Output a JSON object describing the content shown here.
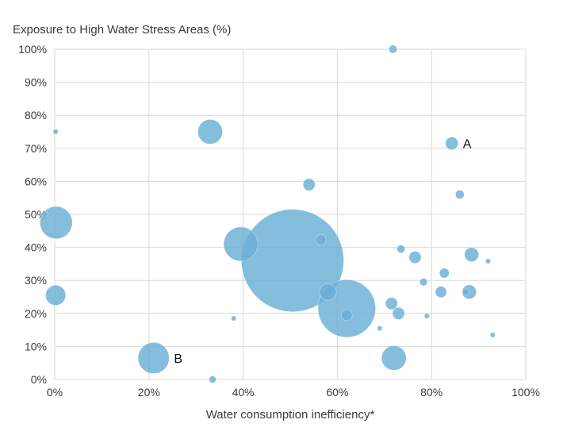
{
  "chart_data": {
    "type": "scatter",
    "title": "",
    "ylabel": "Exposure to High Water Stress Areas (%)",
    "xlabel": "Water consumption inefficiency*",
    "xlim": [
      0,
      100
    ],
    "ylim": [
      0,
      100
    ],
    "x_ticks": [
      "0%",
      "20%",
      "40%",
      "60%",
      "80%",
      "100%"
    ],
    "y_ticks": [
      "0%",
      "10%",
      "20%",
      "30%",
      "40%",
      "50%",
      "60%",
      "70%",
      "80%",
      "90%",
      "100%"
    ],
    "grid": true,
    "legend": false,
    "bubble_color": "#6aaed6",
    "points": [
      {
        "x": 71.8,
        "y": 100,
        "size": 1.6
      },
      {
        "x": 0.2,
        "y": 75,
        "size": 0.4
      },
      {
        "x": 33,
        "y": 75,
        "size": 15
      },
      {
        "x": 84.3,
        "y": 71.5,
        "size": 4
      },
      {
        "x": 54,
        "y": 59,
        "size": 3.6
      },
      {
        "x": 86,
        "y": 56,
        "size": 1.9
      },
      {
        "x": -2,
        "y": 50,
        "size": 0.5
      },
      {
        "x": 0.3,
        "y": 47.5,
        "size": 26
      },
      {
        "x": 56.5,
        "y": 42.3,
        "size": 2.7
      },
      {
        "x": 39.5,
        "y": 41,
        "size": 29
      },
      {
        "x": 50.5,
        "y": 36,
        "size": 260
      },
      {
        "x": 73.5,
        "y": 39.5,
        "size": 1.6
      },
      {
        "x": 76.5,
        "y": 37,
        "size": 3.6
      },
      {
        "x": 88.5,
        "y": 37.8,
        "size": 5
      },
      {
        "x": 92,
        "y": 35.8,
        "size": 0.4
      },
      {
        "x": 82.7,
        "y": 32.2,
        "size": 2.3
      },
      {
        "x": 78.3,
        "y": 29.5,
        "size": 1.4
      },
      {
        "x": 58,
        "y": 26.5,
        "size": 7
      },
      {
        "x": 0.2,
        "y": 25.5,
        "size": 10
      },
      {
        "x": 87.3,
        "y": 26.5,
        "size": 1
      },
      {
        "x": 82,
        "y": 26.5,
        "size": 3.1
      },
      {
        "x": 88,
        "y": 26.5,
        "size": 5
      },
      {
        "x": 71.5,
        "y": 23,
        "size": 3.6
      },
      {
        "x": 62,
        "y": 21.5,
        "size": 82
      },
      {
        "x": 73,
        "y": 20,
        "size": 3.6
      },
      {
        "x": 62,
        "y": 19.5,
        "size": 3
      },
      {
        "x": 38,
        "y": 18.5,
        "size": 0.5
      },
      {
        "x": 79,
        "y": 19.2,
        "size": 0.4
      },
      {
        "x": 69,
        "y": 15.5,
        "size": 0.4
      },
      {
        "x": 93,
        "y": 13.5,
        "size": 0.5
      },
      {
        "x": 72,
        "y": 6.5,
        "size": 15
      },
      {
        "x": 21,
        "y": 6.5,
        "size": 24
      },
      {
        "x": 33.5,
        "y": 0,
        "size": 1.2
      }
    ],
    "annotations": [
      {
        "text": "A",
        "x": 84.3,
        "y": 71.5
      },
      {
        "text": "B",
        "x": 21,
        "y": 6.5
      }
    ]
  }
}
